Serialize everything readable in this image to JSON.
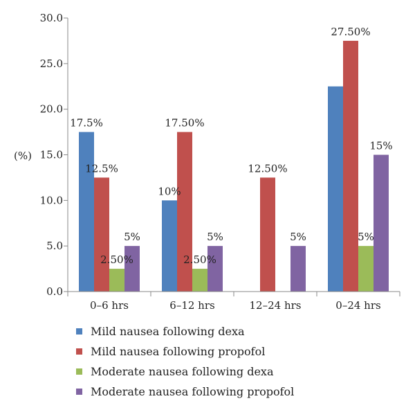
{
  "chart_data": {
    "type": "bar",
    "ylabel": "(%)",
    "ylim": [
      0,
      30
    ],
    "yticks": [
      "0.0",
      "5.0",
      "10.0",
      "15.0",
      "20.0",
      "25.0",
      "30.0"
    ],
    "grid": false,
    "legend_position": "bottom",
    "categories": [
      "0–6 hrs",
      "6–12 hrs",
      "12–24 hrs",
      "0–24 hrs"
    ],
    "series": [
      {
        "name": "Mild nausea following dexa",
        "color": "#4f81bd",
        "values": [
          17.5,
          10,
          0,
          22.5
        ],
        "labels": [
          "17.5%",
          "10%",
          "",
          ""
        ]
      },
      {
        "name": "Mild nausea following propofol",
        "color": "#c0504d",
        "values": [
          12.5,
          17.5,
          12.5,
          27.5
        ],
        "labels": [
          "12.5%",
          "17.50%",
          "12.50%",
          "27.50%"
        ]
      },
      {
        "name": "Moderate nausea following dexa",
        "color": "#9bbb59",
        "values": [
          2.5,
          2.5,
          0,
          5
        ],
        "labels": [
          "2.50%",
          "2.50%",
          "",
          "5%"
        ]
      },
      {
        "name": "Moderate nausea following propofol",
        "color": "#8064a2",
        "values": [
          5,
          5,
          5,
          15
        ],
        "labels": [
          "5%",
          "5%",
          "5%",
          "15%"
        ]
      }
    ]
  }
}
